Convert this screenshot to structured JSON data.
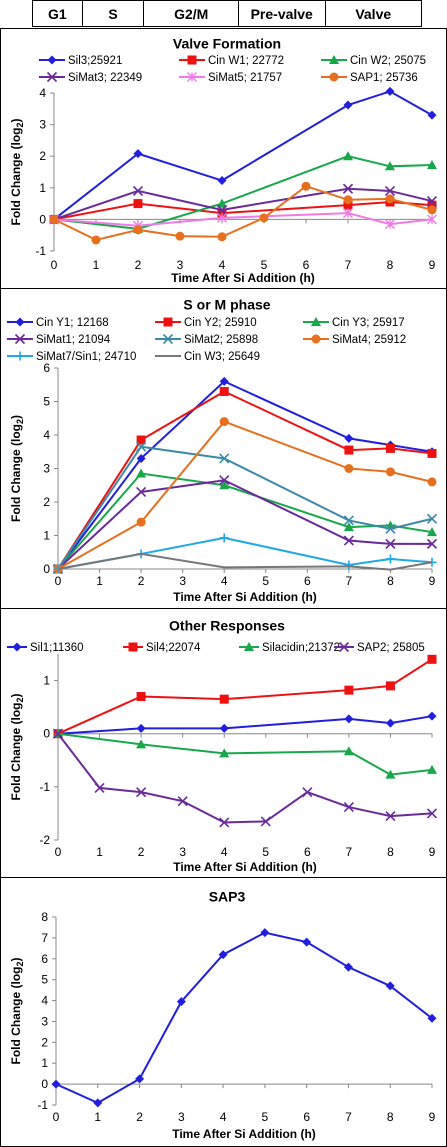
{
  "phases": [
    "G1",
    "S",
    "G2/M",
    "Pre-valve",
    "Valve"
  ],
  "colors": {
    "blue": "#1f1fdd",
    "red": "#ee1111",
    "green": "#18a84a",
    "purple": "#6a2a9a",
    "pink": "#f07ae8",
    "orange": "#e7701e",
    "teal": "#3a8aa8",
    "lightblue": "#1ea8e8",
    "gray": "#777777"
  },
  "chart_data": [
    {
      "type": "line",
      "title": "Valve Formation",
      "xlabel": "Time After Si Addition (h)",
      "ylabel": "Fold Change (log",
      "ylabel_sub": "2",
      "ylabel_end": ")",
      "xlim": [
        0,
        9
      ],
      "ylim": [
        -1,
        4
      ],
      "xticks": [
        0,
        1,
        2,
        3,
        4,
        5,
        6,
        7,
        8,
        9
      ],
      "yticks": [
        -1,
        0,
        1,
        2,
        3,
        4
      ],
      "series": [
        {
          "name": "Sil3;25921",
          "color": "blue",
          "marker": "diamond",
          "x": [
            0,
            2,
            4,
            7,
            8,
            9
          ],
          "y": [
            0,
            2.08,
            1.23,
            3.62,
            4.05,
            3.3
          ]
        },
        {
          "name": "Cin W1; 22772",
          "color": "red",
          "marker": "square",
          "x": [
            0,
            2,
            4,
            7,
            8,
            9
          ],
          "y": [
            0,
            0.5,
            0.2,
            0.45,
            0.55,
            0.45
          ]
        },
        {
          "name": "Cin W2; 25075",
          "color": "green",
          "marker": "triangle",
          "x": [
            0,
            2,
            4,
            7,
            8,
            9
          ],
          "y": [
            0,
            -0.3,
            0.5,
            2.0,
            1.68,
            1.72
          ]
        },
        {
          "name": "SiMat3; 22349",
          "color": "purple",
          "marker": "x",
          "x": [
            0,
            2,
            4,
            7,
            8,
            9
          ],
          "y": [
            0,
            0.9,
            0.3,
            0.97,
            0.9,
            0.58
          ]
        },
        {
          "name": "SiMat5; 21757",
          "color": "pink",
          "marker": "star",
          "x": [
            0,
            2,
            4,
            7,
            8,
            9
          ],
          "y": [
            0,
            -0.2,
            0.05,
            0.2,
            -0.15,
            0.0
          ]
        },
        {
          "name": "SAP1; 25736",
          "color": "orange",
          "marker": "circle",
          "x": [
            0,
            1,
            2,
            3,
            4,
            5,
            6,
            7,
            8,
            9
          ],
          "y": [
            0,
            -0.65,
            -0.33,
            -0.53,
            -0.55,
            0.05,
            1.05,
            0.62,
            0.65,
            0.3
          ]
        }
      ]
    },
    {
      "type": "line",
      "title": "S or M phase",
      "xlabel": "Time After Si Addition (h)",
      "ylabel": "Fold Change (log",
      "ylabel_sub": "2",
      "ylabel_end": ")",
      "xlim": [
        0,
        9
      ],
      "ylim": [
        0,
        6
      ],
      "xticks": [
        0,
        1,
        2,
        3,
        4,
        5,
        6,
        7,
        8,
        9
      ],
      "yticks": [
        0,
        1,
        2,
        3,
        4,
        5,
        6
      ],
      "series": [
        {
          "name": "Cin Y1; 12168",
          "color": "blue",
          "marker": "diamond",
          "x": [
            0,
            2,
            4,
            7,
            8,
            9
          ],
          "y": [
            0,
            3.3,
            5.6,
            3.9,
            3.7,
            3.5
          ]
        },
        {
          "name": "Cin Y2; 25910",
          "color": "red",
          "marker": "square",
          "x": [
            0,
            2,
            4,
            7,
            8,
            9
          ],
          "y": [
            0,
            3.85,
            5.3,
            3.55,
            3.6,
            3.45
          ]
        },
        {
          "name": "Cin Y3; 25917",
          "color": "green",
          "marker": "triangle",
          "x": [
            0,
            2,
            4,
            7,
            8,
            9
          ],
          "y": [
            0,
            2.85,
            2.5,
            1.25,
            1.3,
            1.1
          ]
        },
        {
          "name": "SiMat1; 21094",
          "color": "purple",
          "marker": "x",
          "x": [
            0,
            2,
            4,
            7,
            8,
            9
          ],
          "y": [
            0,
            2.3,
            2.65,
            0.85,
            0.75,
            0.75
          ]
        },
        {
          "name": "SiMat2; 25898",
          "color": "teal",
          "marker": "x",
          "x": [
            0,
            2,
            4,
            7,
            8,
            9
          ],
          "y": [
            0,
            3.65,
            3.3,
            1.45,
            1.2,
            1.5
          ]
        },
        {
          "name": "SiMat4; 25912",
          "color": "orange",
          "marker": "circle",
          "x": [
            0,
            2,
            4,
            7,
            8,
            9
          ],
          "y": [
            0,
            1.4,
            4.4,
            3.0,
            2.9,
            2.6
          ]
        },
        {
          "name": "SiMat7/Sin1; 24710",
          "color": "lightblue",
          "marker": "plus",
          "x": [
            0,
            2,
            4,
            7,
            8,
            9
          ],
          "y": [
            0,
            0.45,
            0.93,
            0.12,
            0.3,
            0.2
          ]
        },
        {
          "name": "Cin W3; 25649",
          "color": "gray",
          "marker": "none",
          "x": [
            0,
            2,
            4,
            7,
            8,
            9
          ],
          "y": [
            0,
            0.45,
            0.05,
            0.08,
            -0.02,
            0.2
          ]
        }
      ]
    },
    {
      "type": "line",
      "title": "Other Responses",
      "xlabel": "Time After Si Addition (h)",
      "ylabel": "Fold Change (log",
      "ylabel_sub": "2",
      "ylabel_end": ")",
      "xlim": [
        0,
        9
      ],
      "ylim": [
        -2,
        1.5
      ],
      "xticks": [
        0,
        1,
        2,
        3,
        4,
        5,
        6,
        7,
        8,
        9
      ],
      "yticks": [
        -2,
        -1,
        0,
        1
      ],
      "series": [
        {
          "name": "Sil1;11360",
          "color": "blue",
          "marker": "diamond",
          "x": [
            0,
            2,
            4,
            7,
            8,
            9
          ],
          "y": [
            0,
            0.1,
            0.1,
            0.28,
            0.2,
            0.33
          ]
        },
        {
          "name": "Sil4;22074",
          "color": "red",
          "marker": "square",
          "x": [
            0,
            2,
            4,
            7,
            8,
            9
          ],
          "y": [
            0,
            0.7,
            0.65,
            0.82,
            0.9,
            1.4
          ]
        },
        {
          "name": "Silacidin;21372",
          "color": "green",
          "marker": "triangle",
          "x": [
            0,
            2,
            4,
            7,
            8,
            9
          ],
          "y": [
            0,
            -0.2,
            -0.37,
            -0.33,
            -0.77,
            -0.68
          ]
        },
        {
          "name": "SAP2; 25805",
          "color": "purple",
          "marker": "x",
          "x": [
            0,
            1,
            2,
            3,
            4,
            5,
            6,
            7,
            8,
            9
          ],
          "y": [
            0,
            -1.02,
            -1.1,
            -1.27,
            -1.67,
            -1.65,
            -1.1,
            -1.38,
            -1.55,
            -1.5
          ]
        }
      ]
    },
    {
      "type": "line",
      "title": "SAP3",
      "xlabel": "Time After Si Addition (h)",
      "ylabel": "Fold Change (log",
      "ylabel_sub": "2",
      "ylabel_end": ")",
      "xlim": [
        0,
        9
      ],
      "ylim": [
        -1,
        8
      ],
      "xticks": [
        0,
        1,
        2,
        3,
        4,
        5,
        6,
        7,
        8,
        9
      ],
      "yticks": [
        -1,
        0,
        1,
        2,
        3,
        4,
        5,
        6,
        7,
        8
      ],
      "series": [
        {
          "name": "",
          "color": "blue",
          "marker": "diamond",
          "x": [
            0,
            1,
            2,
            3,
            4,
            5,
            6,
            7,
            8,
            9
          ],
          "y": [
            0,
            -0.9,
            0.25,
            3.95,
            6.2,
            7.25,
            6.8,
            5.6,
            4.7,
            3.15
          ]
        }
      ]
    }
  ]
}
